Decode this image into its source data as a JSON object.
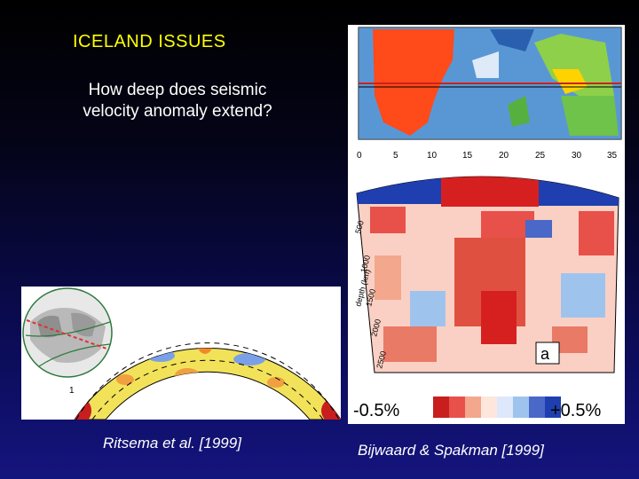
{
  "slide": {
    "title": "ICELAND ISSUES",
    "question_line1": "How deep does seismic",
    "question_line2": "velocity anomaly extend?"
  },
  "left_figure": {
    "caption": "Ritsema et al. [1999]",
    "corner_label": "1"
  },
  "right_figure": {
    "caption": "Bijwaard & Spakman [1999]",
    "x_ticks": [
      "0",
      "5",
      "10",
      "15",
      "20",
      "25",
      "30",
      "35"
    ],
    "depth_label": "depth (km)",
    "depth_ticks": [
      "500",
      "1000",
      "1500",
      "2000",
      "2500"
    ],
    "panel_letter": "a",
    "scale_min": "-0.5%",
    "scale_max": "+0.5%"
  },
  "colors": {
    "title": "#ffff00",
    "text": "#ffffff",
    "anomaly_red": "#d62020",
    "anomaly_blue": "#1f3fb0"
  }
}
